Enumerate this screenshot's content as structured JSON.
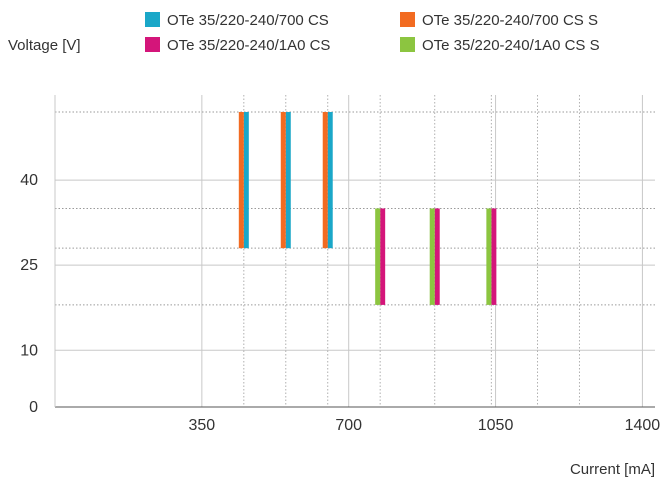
{
  "chart_data": {
    "type": "bar",
    "title": "",
    "xlabel": "Current [mA]",
    "ylabel": "Voltage [V]",
    "xlim": [
      0,
      1430
    ],
    "ylim": [
      0,
      55
    ],
    "x_ticks": [
      350,
      700,
      1050,
      1400
    ],
    "y_ticks": [
      0,
      10,
      25,
      40
    ],
    "grid": true,
    "legend_position": "top",
    "series": [
      {
        "name": "OTe 35/220-240/700 CS",
        "color": "#1aa7c8",
        "bars": [
          {
            "x": 450,
            "y_min": 28,
            "y_max": 52
          },
          {
            "x": 550,
            "y_min": 28,
            "y_max": 52
          },
          {
            "x": 650,
            "y_min": 28,
            "y_max": 52
          }
        ]
      },
      {
        "name": "OTe 35/220-240/700 CS S",
        "color": "#f26b21",
        "bars": [
          {
            "x": 450,
            "y_min": 28,
            "y_max": 52
          },
          {
            "x": 550,
            "y_min": 28,
            "y_max": 52
          },
          {
            "x": 650,
            "y_min": 28,
            "y_max": 52
          }
        ]
      },
      {
        "name": "OTe 35/220-240/1A0 CS",
        "color": "#d4157a",
        "bars": [
          {
            "x": 775,
            "y_min": 18,
            "y_max": 35
          },
          {
            "x": 905,
            "y_min": 18,
            "y_max": 35
          },
          {
            "x": 1040,
            "y_min": 18,
            "y_max": 35
          }
        ]
      },
      {
        "name": "OTe 35/220-240/1A0 CS S",
        "color": "#8cc540",
        "bars": [
          {
            "x": 775,
            "y_min": 18,
            "y_max": 35
          },
          {
            "x": 905,
            "y_min": 18,
            "y_max": 35
          },
          {
            "x": 1040,
            "y_min": 18,
            "y_max": 35
          }
        ]
      }
    ]
  }
}
